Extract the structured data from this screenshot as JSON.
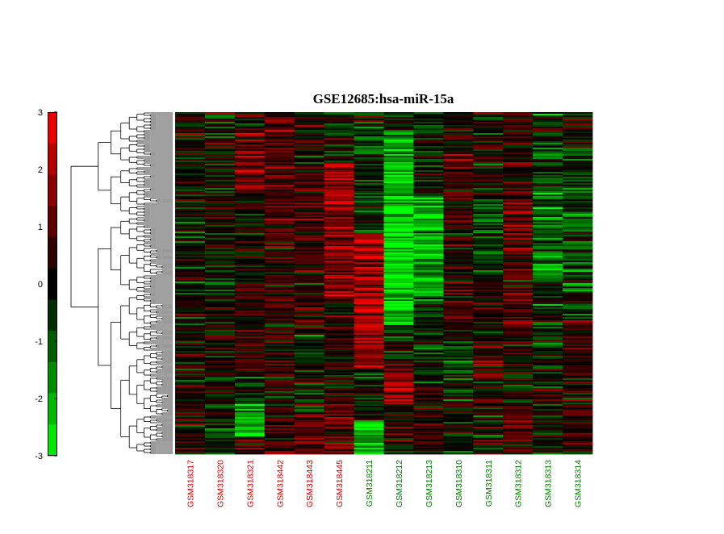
{
  "chart_data": {
    "type": "heatmap",
    "title": "GSE12685:hsa-miR-15a",
    "xlabel": "",
    "ylabel": "",
    "colorbar": {
      "min": -3,
      "max": 3,
      "ticks": [
        "3",
        "2",
        "1",
        "0",
        "-1",
        "-2",
        "-3"
      ],
      "tick_values": [
        3,
        2,
        1,
        0,
        -1,
        -2,
        -3
      ],
      "low_color": "#00ff00",
      "mid_color": "#000000",
      "high_color": "#ff0000"
    },
    "dendrogram": "rows",
    "samples": [
      {
        "label": "GSM318317",
        "group": "red"
      },
      {
        "label": "GSM318320",
        "group": "red"
      },
      {
        "label": "GSM318321",
        "group": "red"
      },
      {
        "label": "GSM318442",
        "group": "red"
      },
      {
        "label": "GSM318443",
        "group": "red"
      },
      {
        "label": "GSM318445",
        "group": "red"
      },
      {
        "label": "GSM318211",
        "group": "green"
      },
      {
        "label": "GSM318212",
        "group": "green"
      },
      {
        "label": "GSM318213",
        "group": "green"
      },
      {
        "label": "GSM318310",
        "group": "green"
      },
      {
        "label": "GSM318311",
        "group": "green"
      },
      {
        "label": "GSM318312",
        "group": "green"
      },
      {
        "label": "GSM318313",
        "group": "green"
      },
      {
        "label": "GSM318314",
        "group": "green"
      }
    ],
    "group_colors": {
      "red": "#cc0000",
      "green": "#007700"
    },
    "column_patterns": [
      {
        "start": [
          0.0,
          0.3,
          0.5,
          0.7,
          0.85
        ],
        "level": [
          0.0,
          -0.2,
          0.0,
          0.3,
          0.2
        ]
      },
      {
        "start": [
          0.0,
          0.25,
          0.55,
          0.8
        ],
        "level": [
          0.1,
          -0.1,
          0.0,
          0.1
        ]
      },
      {
        "start": [
          0.0,
          0.05,
          0.25,
          0.6,
          0.75,
          0.85,
          0.95
        ],
        "level": [
          0.3,
          1.2,
          0.3,
          0.6,
          -0.2,
          -1.8,
          0.6
        ]
      },
      {
        "start": [
          0.0,
          0.3,
          0.6,
          0.8,
          0.88
        ],
        "level": [
          0.8,
          0.4,
          0.2,
          0.1,
          0.9
        ]
      },
      {
        "start": [
          0.0,
          0.2,
          0.45,
          0.65,
          0.88
        ],
        "level": [
          0.2,
          0.6,
          0.3,
          -0.1,
          1.2
        ]
      },
      {
        "start": [
          0.0,
          0.15,
          0.3,
          0.55,
          0.85
        ],
        "level": [
          -0.1,
          1.8,
          1.4,
          0.2,
          1.1
        ]
      },
      {
        "start": [
          0.0,
          0.05,
          0.35,
          0.75,
          0.9
        ],
        "level": [
          0.0,
          -0.6,
          1.9,
          -0.3,
          -2.2
        ]
      },
      {
        "start": [
          0.0,
          0.05,
          0.25,
          0.62,
          0.75,
          0.85
        ],
        "level": [
          -0.3,
          -2.0,
          -2.4,
          0.0,
          1.6,
          0.2
        ]
      },
      {
        "start": [
          0.0,
          0.25,
          0.55,
          0.8
        ],
        "level": [
          -0.4,
          -1.8,
          -0.4,
          0.4
        ]
      },
      {
        "start": [
          0.0,
          0.1,
          0.25,
          0.45,
          0.65,
          0.85
        ],
        "level": [
          0.2,
          1.0,
          0.4,
          0.6,
          -0.5,
          0.0
        ]
      },
      {
        "start": [
          0.0,
          0.25,
          0.5,
          0.68,
          0.78
        ],
        "level": [
          0.0,
          -0.6,
          0.3,
          1.0,
          0.1
        ]
      },
      {
        "start": [
          0.0,
          0.2,
          0.35,
          0.65,
          0.85
        ],
        "level": [
          0.4,
          1.0,
          0.8,
          0.0,
          0.8
        ]
      },
      {
        "start": [
          0.0,
          0.2,
          0.5,
          0.75,
          0.85
        ],
        "level": [
          -0.6,
          -1.2,
          -0.4,
          0.2,
          -0.2
        ]
      },
      {
        "start": [
          0.0,
          0.1,
          0.3,
          0.6,
          0.8
        ],
        "level": [
          0.3,
          -0.5,
          -0.8,
          0.4,
          0.6
        ]
      }
    ]
  }
}
